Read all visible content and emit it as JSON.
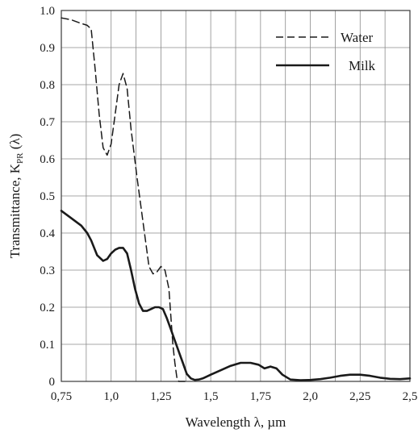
{
  "chart_data": {
    "type": "line",
    "xlabel": "Wavelength λ, µm",
    "ylabel": "Transmittance, K",
    "ylabel_subscript": "PR",
    "ylabel_suffix": " (λ)",
    "xlim": [
      0.75,
      2.5
    ],
    "ylim": [
      0,
      1.0
    ],
    "grid": true,
    "legend_position": "top-right",
    "x_ticks": [
      0.75,
      0.875,
      1.0,
      1.125,
      1.25,
      1.375,
      1.5,
      1.625,
      1.75,
      1.875,
      2.0,
      2.125,
      2.25,
      2.375,
      2.5
    ],
    "x_tick_labels": [
      "0,75",
      "",
      "1,0",
      "",
      "1,25",
      "",
      "1,5",
      "",
      "1,75",
      "",
      "2,0",
      "",
      "2,25",
      "",
      "2,5"
    ],
    "y_ticks": [
      0,
      0.1,
      0.2,
      0.3,
      0.4,
      0.5,
      0.6,
      0.7,
      0.8,
      0.9,
      1.0
    ],
    "y_tick_labels": [
      "0",
      "0.1",
      "0.2",
      "0.3",
      "0.4",
      "0.5",
      "0.6",
      "0.7",
      "0.8",
      "0.9",
      "1.0"
    ],
    "series": [
      {
        "name": "Water",
        "style": "dashed",
        "color": "#1a1a1a",
        "x": [
          0.75,
          0.8,
          0.85,
          0.88,
          0.9,
          0.92,
          0.94,
          0.96,
          0.98,
          1.0,
          1.02,
          1.04,
          1.06,
          1.08,
          1.1,
          1.13,
          1.16,
          1.19,
          1.21,
          1.23,
          1.25,
          1.27,
          1.29,
          1.31,
          1.32,
          1.33,
          1.34,
          1.35,
          1.37
        ],
        "y": [
          0.98,
          0.975,
          0.965,
          0.96,
          0.95,
          0.84,
          0.72,
          0.63,
          0.61,
          0.64,
          0.72,
          0.8,
          0.83,
          0.79,
          0.68,
          0.55,
          0.43,
          0.31,
          0.29,
          0.295,
          0.31,
          0.3,
          0.25,
          0.1,
          0.05,
          0.01,
          0.0,
          0.0,
          0.0
        ]
      },
      {
        "name": "Milk",
        "style": "solid",
        "color": "#1a1a1a",
        "x": [
          0.75,
          0.8,
          0.85,
          0.88,
          0.9,
          0.93,
          0.96,
          0.98,
          1.0,
          1.02,
          1.04,
          1.06,
          1.08,
          1.1,
          1.12,
          1.14,
          1.16,
          1.18,
          1.2,
          1.22,
          1.24,
          1.26,
          1.28,
          1.3,
          1.32,
          1.34,
          1.36,
          1.38,
          1.4,
          1.42,
          1.44,
          1.46,
          1.5,
          1.55,
          1.6,
          1.65,
          1.7,
          1.74,
          1.77,
          1.8,
          1.83,
          1.86,
          1.9,
          1.95,
          2.0,
          2.05,
          2.1,
          2.15,
          2.2,
          2.25,
          2.3,
          2.35,
          2.4,
          2.45,
          2.5
        ],
        "y": [
          0.46,
          0.44,
          0.42,
          0.4,
          0.38,
          0.34,
          0.325,
          0.33,
          0.345,
          0.355,
          0.36,
          0.36,
          0.345,
          0.3,
          0.25,
          0.21,
          0.19,
          0.19,
          0.195,
          0.2,
          0.2,
          0.195,
          0.17,
          0.14,
          0.11,
          0.08,
          0.05,
          0.02,
          0.008,
          0.004,
          0.005,
          0.008,
          0.018,
          0.03,
          0.042,
          0.05,
          0.05,
          0.045,
          0.035,
          0.04,
          0.035,
          0.018,
          0.005,
          0.003,
          0.004,
          0.006,
          0.01,
          0.015,
          0.018,
          0.018,
          0.015,
          0.01,
          0.007,
          0.006,
          0.008
        ]
      }
    ]
  }
}
